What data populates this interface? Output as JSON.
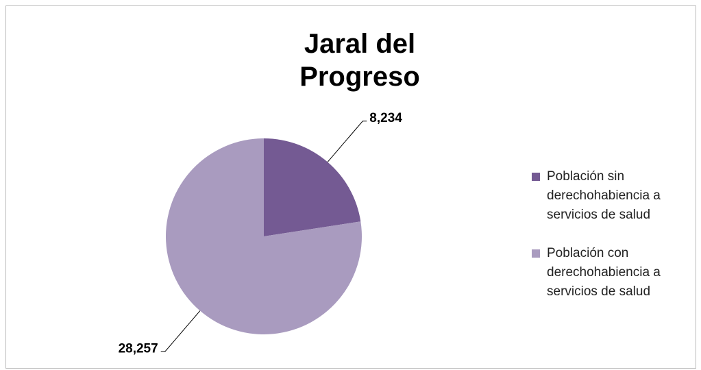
{
  "chart_data": {
    "type": "pie",
    "title": "Jaral del Progreso",
    "categories": [
      "Población sin derechohabiencia a servicios de salud",
      "Población con derechohabiencia a servicios de salud"
    ],
    "values": [
      8234,
      28257
    ],
    "value_labels": [
      "8,234",
      "28,257"
    ],
    "colors": [
      "#745a93",
      "#a99bbf"
    ],
    "legend": "right"
  }
}
